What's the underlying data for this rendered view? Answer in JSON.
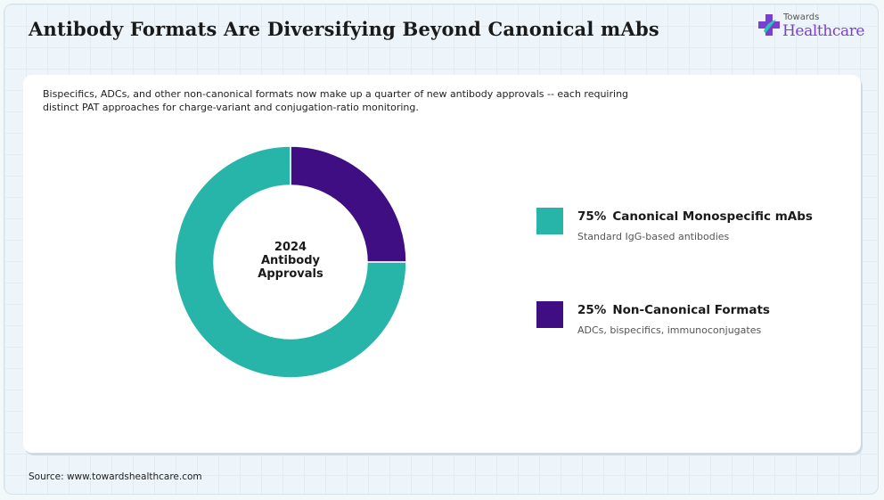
{
  "header": {
    "title": "Antibody Formats Are Diversifying Beyond Canonical mAbs",
    "logo_top": "Towards",
    "logo_bottom": "Healthcare"
  },
  "subtitle": "Bispecifics, ADCs, and other non-canonical formats now make up a quarter of new antibody approvals -- each requiring distinct PAT approaches for charge-variant and conjugation-ratio monitoring.",
  "center_label": [
    "2024",
    "Antibody",
    "Approvals"
  ],
  "legend": [
    {
      "pct": "75%",
      "name": "Canonical Monospecific mAbs",
      "desc": "Standard IgG-based antibodies",
      "color": "#26b5a8"
    },
    {
      "pct": "25%",
      "name": "Non-Canonical Formats",
      "desc": "ADCs, bispecifics, immunoconjugates",
      "color": "#3f0e82"
    }
  ],
  "source": "Source: www.towardshealthcare.com",
  "chart_data": {
    "type": "pie",
    "variant": "donut",
    "categories": [
      "Canonical Monospecific mAbs",
      "Non-Canonical Formats"
    ],
    "values": [
      75,
      25
    ],
    "colors": [
      "#26b5a8",
      "#3f0e82"
    ],
    "center_text": "2024 Antibody Approvals",
    "legend_position": "right"
  }
}
